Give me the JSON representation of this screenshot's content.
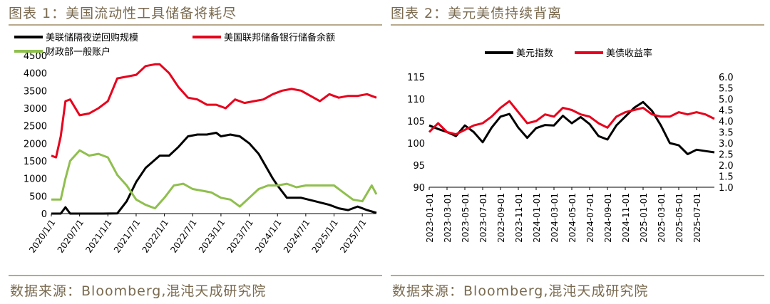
{
  "left": {
    "title": "图表 1：美国流动性工具储备将耗尽",
    "source": "数据来源：Bloomberg,混沌天成研究院"
  },
  "right": {
    "title": "图表 2：美元美债持续背离",
    "source": "数据来源：Bloomberg,混沌天成研究院"
  },
  "colors": {
    "black": "#000000",
    "red": "#e8001c",
    "green": "#8fbf4d",
    "brand": "#7a6a4f"
  },
  "chart_data": [
    {
      "type": "line",
      "x_ticks": [
        "2020/1/1",
        "2020/7/1",
        "2021/1/1",
        "2021/7/1",
        "2022/1/1",
        "2022/7/1",
        "2023/1/1",
        "2023/7/1",
        "2024/1/1",
        "2024/7/1",
        "2025/1/1",
        "2025/7/1"
      ],
      "y_ticks": [
        "0",
        "500",
        "1000",
        "1500",
        "2000",
        "2500",
        "3000",
        "3500",
        "4000",
        "4500"
      ],
      "ylim": [
        0,
        4500
      ],
      "legend_position": "top-left",
      "series": [
        {
          "name": "美联储隔夜逆回购规模",
          "color": "#000000",
          "x": [
            "2020-01",
            "2020-03",
            "2020-04",
            "2020-05",
            "2020-07",
            "2020-09",
            "2020-12",
            "2021-03",
            "2021-05",
            "2021-07",
            "2021-09",
            "2021-12",
            "2022-02",
            "2022-04",
            "2022-06",
            "2022-08",
            "2022-10",
            "2022-12",
            "2023-01",
            "2023-03",
            "2023-05",
            "2023-07",
            "2023-09",
            "2023-12",
            "2024-01",
            "2024-03",
            "2024-06",
            "2024-09",
            "2024-12",
            "2025-02",
            "2025-04",
            "2025-06",
            "2025-08",
            "2025-10"
          ],
          "y": [
            0,
            0,
            180,
            0,
            0,
            0,
            0,
            5,
            350,
            900,
            1300,
            1650,
            1650,
            1900,
            2200,
            2250,
            2250,
            2300,
            2200,
            2250,
            2200,
            2000,
            1700,
            1000,
            800,
            450,
            450,
            350,
            250,
            150,
            100,
            200,
            100,
            20
          ]
        },
        {
          "name": "美国联邦储备银行储备余额",
          "color": "#e8001c",
          "x": [
            "2020-01",
            "2020-02",
            "2020-03",
            "2020-04",
            "2020-05",
            "2020-07",
            "2020-09",
            "2020-11",
            "2021-01",
            "2021-03",
            "2021-05",
            "2021-07",
            "2021-09",
            "2021-11",
            "2021-12",
            "2022-02",
            "2022-04",
            "2022-06",
            "2022-08",
            "2022-10",
            "2022-12",
            "2023-02",
            "2023-04",
            "2023-06",
            "2023-08",
            "2023-10",
            "2023-12",
            "2024-02",
            "2024-04",
            "2024-06",
            "2024-08",
            "2024-10",
            "2024-12",
            "2025-02",
            "2025-04",
            "2025-06",
            "2025-08",
            "2025-10"
          ],
          "y": [
            1650,
            1600,
            2200,
            3200,
            3250,
            2800,
            2850,
            3000,
            3200,
            3850,
            3900,
            3950,
            4200,
            4250,
            4250,
            4000,
            3600,
            3300,
            3250,
            3100,
            3100,
            3000,
            3250,
            3150,
            3200,
            3250,
            3400,
            3500,
            3550,
            3500,
            3350,
            3200,
            3400,
            3300,
            3350,
            3350,
            3400,
            3300
          ]
        },
        {
          "name": "财政部一般账户",
          "color": "#8fbf4d",
          "x": [
            "2020-01",
            "2020-03",
            "2020-04",
            "2020-05",
            "2020-07",
            "2020-09",
            "2020-11",
            "2021-01",
            "2021-03",
            "2021-05",
            "2021-07",
            "2021-09",
            "2021-11",
            "2022-01",
            "2022-03",
            "2022-05",
            "2022-07",
            "2022-09",
            "2022-11",
            "2023-01",
            "2023-03",
            "2023-05",
            "2023-07",
            "2023-09",
            "2023-11",
            "2024-01",
            "2024-03",
            "2024-05",
            "2024-07",
            "2024-09",
            "2024-11",
            "2025-01",
            "2025-03",
            "2025-05",
            "2025-07",
            "2025-09",
            "2025-10"
          ],
          "y": [
            400,
            400,
            1000,
            1500,
            1800,
            1650,
            1700,
            1600,
            1100,
            800,
            400,
            250,
            150,
            450,
            800,
            850,
            700,
            650,
            600,
            450,
            400,
            200,
            450,
            700,
            800,
            800,
            850,
            750,
            800,
            800,
            800,
            800,
            600,
            400,
            350,
            800,
            550
          ]
        }
      ]
    },
    {
      "type": "line",
      "x_ticks": [
        "2023-01",
        "2023-03",
        "2023-05",
        "2023-07",
        "2023-09",
        "2023-11",
        "2024-01",
        "2024-03",
        "2024-05",
        "2024-07",
        "2024-09",
        "2024-11",
        "2025-01",
        "2025-03",
        "2025-05",
        "2025-07"
      ],
      "y_left_ticks": [
        "90",
        "95",
        "100",
        "105",
        "110",
        "115"
      ],
      "y_right_ticks": [
        "1.0",
        "1.5",
        "2.0",
        "2.5",
        "3.0",
        "3.5",
        "4.0",
        "4.5",
        "5.0",
        "5.5",
        "6.0"
      ],
      "ylim_left": [
        90,
        115
      ],
      "ylim_right": [
        1.0,
        6.0
      ],
      "legend_position": "top-center",
      "series": [
        {
          "name": "美元指数",
          "color": "#000000",
          "axis": "left",
          "x": [
            "2023-01",
            "2023-02",
            "2023-03",
            "2023-04",
            "2023-05",
            "2023-06",
            "2023-07",
            "2023-08",
            "2023-09",
            "2023-10",
            "2023-11",
            "2023-12",
            "2024-01",
            "2024-02",
            "2024-03",
            "2024-04",
            "2024-05",
            "2024-06",
            "2024-07",
            "2024-08",
            "2024-09",
            "2024-10",
            "2024-11",
            "2024-12",
            "2025-01",
            "2025-02",
            "2025-03",
            "2025-04",
            "2025-05",
            "2025-06",
            "2025-07",
            "2025-08",
            "2025-09"
          ],
          "y": [
            104,
            103.2,
            102.5,
            101.6,
            104,
            102.5,
            100.2,
            103.5,
            106,
            106.6,
            103.5,
            101.2,
            103.4,
            104.1,
            104,
            106.2,
            104.5,
            105.9,
            104.3,
            101.6,
            100.8,
            104,
            106,
            108,
            109.3,
            107.3,
            104,
            100,
            99.5,
            97.5,
            98.5,
            98.2,
            97.9
          ]
        },
        {
          "name": "美债收益率",
          "color": "#e8001c",
          "axis": "right",
          "x": [
            "2023-01",
            "2023-02",
            "2023-03",
            "2023-04",
            "2023-05",
            "2023-06",
            "2023-07",
            "2023-08",
            "2023-09",
            "2023-10",
            "2023-11",
            "2023-12",
            "2024-01",
            "2024-02",
            "2024-03",
            "2024-04",
            "2024-05",
            "2024-06",
            "2024-07",
            "2024-08",
            "2024-09",
            "2024-10",
            "2024-11",
            "2024-12",
            "2025-01",
            "2025-02",
            "2025-03",
            "2025-04",
            "2025-05",
            "2025-06",
            "2025-07",
            "2025-08",
            "2025-09"
          ],
          "y": [
            3.5,
            3.9,
            3.5,
            3.4,
            3.6,
            3.8,
            3.9,
            4.2,
            4.6,
            4.9,
            4.4,
            3.9,
            4.0,
            4.3,
            4.2,
            4.6,
            4.5,
            4.3,
            4.2,
            3.9,
            3.7,
            4.2,
            4.4,
            4.5,
            4.6,
            4.3,
            4.2,
            4.2,
            4.4,
            4.3,
            4.4,
            4.3,
            4.1
          ]
        }
      ]
    }
  ]
}
